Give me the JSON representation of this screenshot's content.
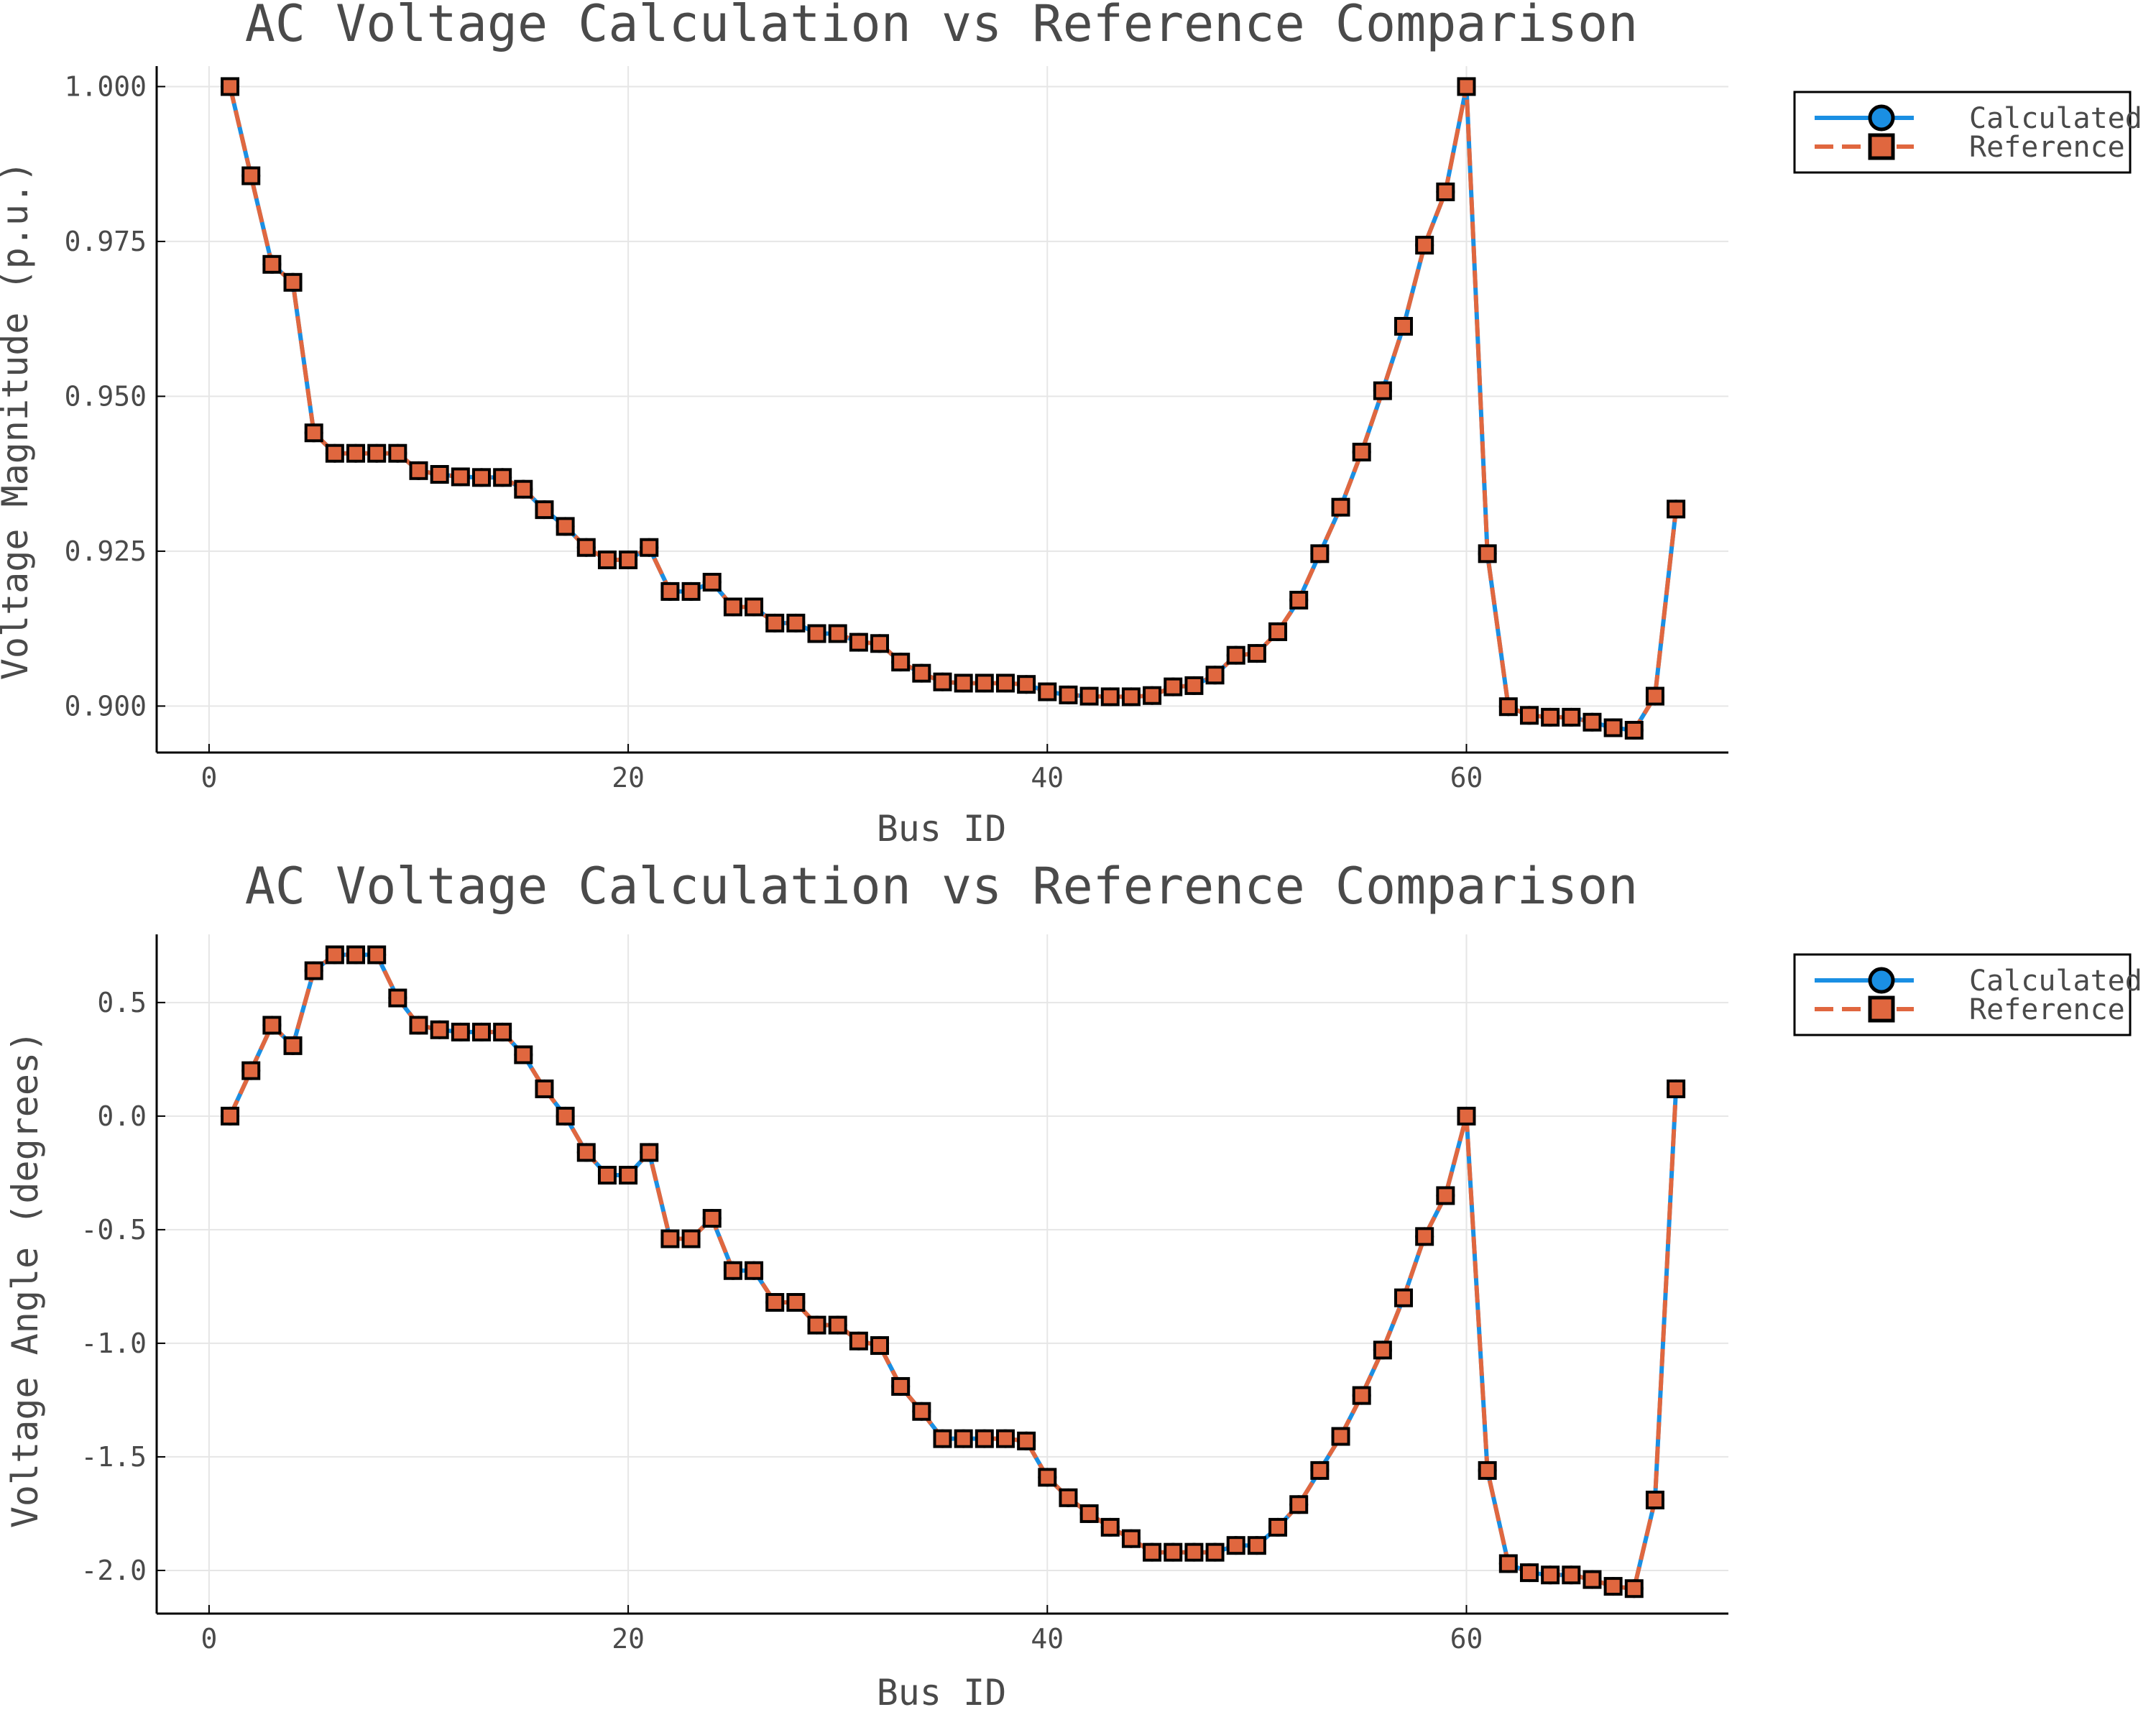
{
  "colors": {
    "calculated": "#1a8fe3",
    "reference": "#e0673f",
    "marker_edge": "#000000"
  },
  "chart_data": [
    {
      "type": "line",
      "title": "AC Voltage Calculation vs Reference Comparison",
      "xlabel": "Bus ID",
      "ylabel": "Voltage Magnitude (p.u.)",
      "xlim": [
        -2.5,
        72.5
      ],
      "ylim": [
        0.8925,
        1.0033
      ],
      "xticks": [
        0,
        20,
        40,
        60
      ],
      "xtick_labels": [
        "0",
        "20",
        "40",
        "60"
      ],
      "yticks": [
        0.9,
        0.925,
        0.95,
        0.975,
        1.0
      ],
      "ytick_labels": [
        "0.900",
        "0.925",
        "0.950",
        "0.975",
        "1.000"
      ],
      "grid": true,
      "legend": "outside-top-right",
      "series": [
        {
          "name": "Calculated",
          "style": "solid line, circle markers",
          "x": [
            1,
            2,
            3,
            4,
            5,
            6,
            7,
            8,
            9,
            10,
            11,
            12,
            13,
            14,
            15,
            16,
            17,
            18,
            19,
            20,
            21,
            22,
            23,
            24,
            25,
            26,
            27,
            28,
            29,
            30,
            31,
            32,
            33,
            34,
            35,
            36,
            37,
            38,
            39,
            40,
            41,
            42,
            43,
            44,
            45,
            46,
            47,
            48,
            49,
            50,
            51,
            52,
            53,
            54,
            55,
            56,
            57,
            58,
            59,
            60,
            61,
            62,
            63,
            64,
            65,
            66,
            67,
            68,
            69,
            70
          ],
          "values": [
            1.0,
            0.9856,
            0.9713,
            0.9684,
            0.9441,
            0.9408,
            0.9408,
            0.9408,
            0.9408,
            0.938,
            0.9374,
            0.937,
            0.9369,
            0.9369,
            0.935,
            0.9317,
            0.929,
            0.9256,
            0.9236,
            0.9236,
            0.9256,
            0.9185,
            0.9185,
            0.92,
            0.916,
            0.916,
            0.9134,
            0.9134,
            0.9117,
            0.9117,
            0.9103,
            0.9101,
            0.9071,
            0.9053,
            0.9039,
            0.9037,
            0.9037,
            0.9037,
            0.9035,
            0.9023,
            0.9018,
            0.9016,
            0.9015,
            0.9015,
            0.9017,
            0.9031,
            0.9033,
            0.905,
            0.9082,
            0.9085,
            0.912,
            0.9171,
            0.9246,
            0.9321,
            0.941,
            0.9509,
            0.9613,
            0.9744,
            0.983,
            1.0,
            0.9246,
            0.8999,
            0.8985,
            0.8982,
            0.8982,
            0.8974,
            0.8965,
            0.8961,
            0.9016,
            0.9318
          ]
        },
        {
          "name": "Reference",
          "style": "dashed line, square markers",
          "x": [
            1,
            2,
            3,
            4,
            5,
            6,
            7,
            8,
            9,
            10,
            11,
            12,
            13,
            14,
            15,
            16,
            17,
            18,
            19,
            20,
            21,
            22,
            23,
            24,
            25,
            26,
            27,
            28,
            29,
            30,
            31,
            32,
            33,
            34,
            35,
            36,
            37,
            38,
            39,
            40,
            41,
            42,
            43,
            44,
            45,
            46,
            47,
            48,
            49,
            50,
            51,
            52,
            53,
            54,
            55,
            56,
            57,
            58,
            59,
            60,
            61,
            62,
            63,
            64,
            65,
            66,
            67,
            68,
            69,
            70
          ],
          "values": [
            1.0,
            0.9856,
            0.9713,
            0.9684,
            0.9441,
            0.9408,
            0.9408,
            0.9408,
            0.9408,
            0.938,
            0.9374,
            0.937,
            0.9369,
            0.9369,
            0.935,
            0.9317,
            0.929,
            0.9256,
            0.9236,
            0.9236,
            0.9256,
            0.9185,
            0.9185,
            0.92,
            0.916,
            0.916,
            0.9134,
            0.9134,
            0.9117,
            0.9117,
            0.9103,
            0.9101,
            0.9071,
            0.9053,
            0.9039,
            0.9037,
            0.9037,
            0.9037,
            0.9035,
            0.9023,
            0.9018,
            0.9016,
            0.9015,
            0.9015,
            0.9017,
            0.9031,
            0.9033,
            0.905,
            0.9082,
            0.9085,
            0.912,
            0.9171,
            0.9246,
            0.9321,
            0.941,
            0.9509,
            0.9613,
            0.9744,
            0.983,
            1.0,
            0.9246,
            0.8999,
            0.8985,
            0.8982,
            0.8982,
            0.8974,
            0.8965,
            0.8961,
            0.9016,
            0.9318
          ]
        }
      ]
    },
    {
      "type": "line",
      "title": "AC Voltage Calculation vs Reference Comparison",
      "xlabel": "Bus ID",
      "ylabel": "Voltage Angle (degrees)",
      "xlim": [
        -2.5,
        72.5
      ],
      "ylim": [
        -2.19,
        0.8
      ],
      "xticks": [
        0,
        20,
        40,
        60
      ],
      "xtick_labels": [
        "0",
        "20",
        "40",
        "60"
      ],
      "yticks": [
        -2.0,
        -1.5,
        -1.0,
        -0.5,
        0.0,
        0.5
      ],
      "ytick_labels": [
        "-2.0",
        "-1.5",
        "-1.0",
        "-0.5",
        "0.0",
        "0.5"
      ],
      "grid": true,
      "legend": "outside-top-right",
      "series": [
        {
          "name": "Calculated",
          "style": "solid line, circle markers",
          "x": [
            1,
            2,
            3,
            4,
            5,
            6,
            7,
            8,
            9,
            10,
            11,
            12,
            13,
            14,
            15,
            16,
            17,
            18,
            19,
            20,
            21,
            22,
            23,
            24,
            25,
            26,
            27,
            28,
            29,
            30,
            31,
            32,
            33,
            34,
            35,
            36,
            37,
            38,
            39,
            40,
            41,
            42,
            43,
            44,
            45,
            46,
            47,
            48,
            49,
            50,
            51,
            52,
            53,
            54,
            55,
            56,
            57,
            58,
            59,
            60,
            61,
            62,
            63,
            64,
            65,
            66,
            67,
            68,
            69,
            70
          ],
          "values": [
            0.0,
            0.2,
            0.4,
            0.31,
            0.64,
            0.71,
            0.71,
            0.71,
            0.52,
            0.4,
            0.38,
            0.37,
            0.37,
            0.37,
            0.27,
            0.12,
            0.0,
            -0.16,
            -0.26,
            -0.26,
            -0.16,
            -0.54,
            -0.54,
            -0.45,
            -0.68,
            -0.68,
            -0.82,
            -0.82,
            -0.92,
            -0.92,
            -0.99,
            -1.01,
            -1.19,
            -1.3,
            -1.42,
            -1.42,
            -1.42,
            -1.42,
            -1.43,
            -1.59,
            -1.68,
            -1.75,
            -1.81,
            -1.86,
            -1.92,
            -1.92,
            -1.92,
            -1.92,
            -1.89,
            -1.89,
            -1.81,
            -1.71,
            -1.56,
            -1.41,
            -1.23,
            -1.03,
            -0.8,
            -0.53,
            -0.35,
            0.0,
            -1.56,
            -1.97,
            -2.01,
            -2.02,
            -2.02,
            -2.04,
            -2.07,
            -2.08,
            -1.69,
            0.12
          ]
        },
        {
          "name": "Reference",
          "style": "dashed line, square markers",
          "x": [
            1,
            2,
            3,
            4,
            5,
            6,
            7,
            8,
            9,
            10,
            11,
            12,
            13,
            14,
            15,
            16,
            17,
            18,
            19,
            20,
            21,
            22,
            23,
            24,
            25,
            26,
            27,
            28,
            29,
            30,
            31,
            32,
            33,
            34,
            35,
            36,
            37,
            38,
            39,
            40,
            41,
            42,
            43,
            44,
            45,
            46,
            47,
            48,
            49,
            50,
            51,
            52,
            53,
            54,
            55,
            56,
            57,
            58,
            59,
            60,
            61,
            62,
            63,
            64,
            65,
            66,
            67,
            68,
            69,
            70
          ],
          "values": [
            0.0,
            0.2,
            0.4,
            0.31,
            0.64,
            0.71,
            0.71,
            0.71,
            0.52,
            0.4,
            0.38,
            0.37,
            0.37,
            0.37,
            0.27,
            0.12,
            0.0,
            -0.16,
            -0.26,
            -0.26,
            -0.16,
            -0.54,
            -0.54,
            -0.45,
            -0.68,
            -0.68,
            -0.82,
            -0.82,
            -0.92,
            -0.92,
            -0.99,
            -1.01,
            -1.19,
            -1.3,
            -1.42,
            -1.42,
            -1.42,
            -1.42,
            -1.43,
            -1.59,
            -1.68,
            -1.75,
            -1.81,
            -1.86,
            -1.92,
            -1.92,
            -1.92,
            -1.92,
            -1.89,
            -1.89,
            -1.81,
            -1.71,
            -1.56,
            -1.41,
            -1.23,
            -1.03,
            -0.8,
            -0.53,
            -0.35,
            0.0,
            -1.56,
            -1.97,
            -2.01,
            -2.02,
            -2.02,
            -2.04,
            -2.07,
            -2.08,
            -1.69,
            0.12
          ]
        }
      ]
    }
  ]
}
